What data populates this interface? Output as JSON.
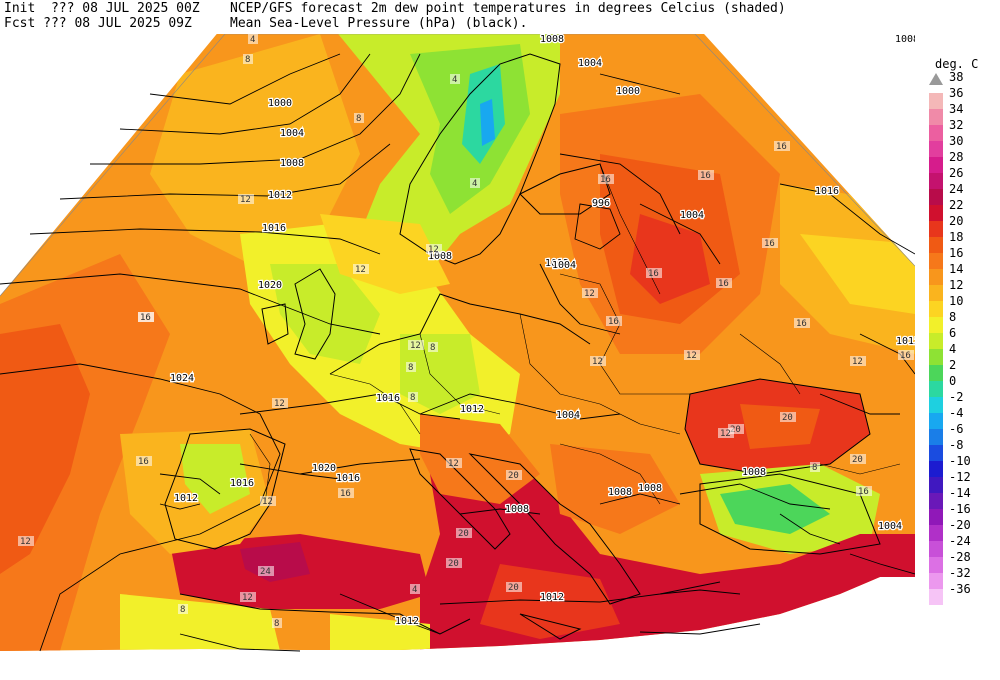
{
  "header": {
    "init_label": "Init  ??? 08 JUL 2025 00Z",
    "title_line": "NCEP/GFS forecast 2m dew point temperatures in degrees Celcius (shaded)",
    "fcst_label": "Fcst ??? 08 JUL 2025 09Z",
    "subtitle_line": "Mean Sea-Level Pressure (hPa) (black)."
  },
  "legend": {
    "unit": "deg. C",
    "top_value": "38",
    "colors": {
      "text": "#000000",
      "arrow": "#999999"
    },
    "bands": [
      {
        "label": "36",
        "color": "#f4b8b8"
      },
      {
        "label": "34",
        "color": "#f08aa8"
      },
      {
        "label": "32",
        "color": "#ec5fa0"
      },
      {
        "label": "30",
        "color": "#e23e9e"
      },
      {
        "label": "28",
        "color": "#d61c8c"
      },
      {
        "label": "26",
        "color": "#c4126e"
      },
      {
        "label": "24",
        "color": "#b80c4a"
      },
      {
        "label": "22",
        "color": "#d0102e"
      },
      {
        "label": "20",
        "color": "#e8361c"
      },
      {
        "label": "18",
        "color": "#f05a14"
      },
      {
        "label": "16",
        "color": "#f6781a"
      },
      {
        "label": "14",
        "color": "#f8961c"
      },
      {
        "label": "12",
        "color": "#fab41e"
      },
      {
        "label": "10",
        "color": "#fcd422"
      },
      {
        "label": "8",
        "color": "#f2f02a"
      },
      {
        "label": "6",
        "color": "#c8ec2a"
      },
      {
        "label": "4",
        "color": "#8ee234"
      },
      {
        "label": "2",
        "color": "#4cd65a"
      },
      {
        "label": "0",
        "color": "#2cd8a0"
      },
      {
        "label": "-2",
        "color": "#1ed0e0"
      },
      {
        "label": "-4",
        "color": "#18a8f0"
      },
      {
        "label": "-6",
        "color": "#1a7ee8"
      },
      {
        "label": "-8",
        "color": "#1a4ce0"
      },
      {
        "label": "-10",
        "color": "#1c1cd0"
      },
      {
        "label": "-12",
        "color": "#4018c0"
      },
      {
        "label": "-14",
        "color": "#6a18b8"
      },
      {
        "label": "-16",
        "color": "#9018b8"
      },
      {
        "label": "-20",
        "color": "#b030c8"
      },
      {
        "label": "-24",
        "color": "#c850d8"
      },
      {
        "label": "-28",
        "color": "#dc70e4"
      },
      {
        "label": "-32",
        "color": "#ec98ee"
      },
      {
        "label": "-36",
        "color": "#f6c4f6"
      }
    ]
  },
  "isobar_labels": [
    "1000",
    "1004",
    "1008",
    "1012",
    "1016",
    "1020",
    "1024",
    "1024",
    "1016",
    "1012",
    "1020",
    "1016",
    "1012",
    "1016",
    "1012",
    "1008",
    "1004",
    "1008",
    "1012",
    "1016",
    "1008",
    "1008",
    "1004",
    "1004",
    "1000",
    "1004",
    "1008",
    "996",
    "1008",
    "1008",
    "1004",
    "1012",
    "1012"
  ],
  "dewpoint_labels": [
    "4",
    "8",
    "4",
    "8",
    "12",
    "12",
    "12",
    "16",
    "16",
    "12",
    "12",
    "4",
    "8",
    "8",
    "8",
    "12",
    "16",
    "16",
    "16",
    "12",
    "16",
    "16",
    "16",
    "12",
    "16",
    "20",
    "20",
    "20",
    "20",
    "20",
    "12",
    "16",
    "24",
    "16",
    "12",
    "8",
    "8",
    "12",
    "12",
    "12",
    "16",
    "16",
    "8",
    "12",
    "4",
    "16",
    "20",
    "20"
  ]
}
